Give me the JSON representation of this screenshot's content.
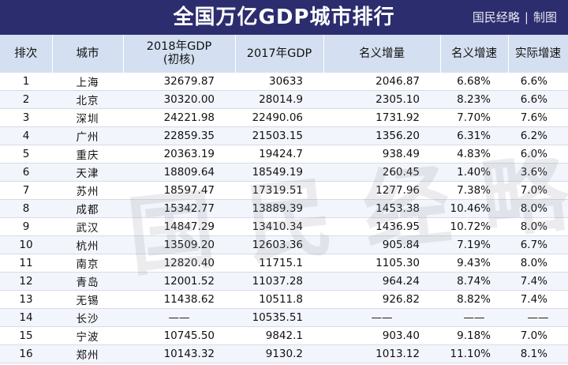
{
  "header": {
    "title": "全国万亿GDP城市排行",
    "credit_org": "国民经略",
    "credit_sep": "|",
    "credit_suffix": "制图"
  },
  "watermark": "国民经略",
  "columns": [
    "排次",
    "城市",
    "2018年GDP\n(初核)",
    "2017年GDP",
    "名义增量",
    "名义增速",
    "实际增速"
  ],
  "rows": [
    [
      "1",
      "上海",
      "32679.87",
      "30633",
      "2046.87",
      "6.68%",
      "6.6%"
    ],
    [
      "2",
      "北京",
      "30320.00",
      "28014.9",
      "2305.10",
      "8.23%",
      "6.6%"
    ],
    [
      "3",
      "深圳",
      "24221.98",
      "22490.06",
      "1731.92",
      "7.70%",
      "7.6%"
    ],
    [
      "4",
      "广州",
      "22859.35",
      "21503.15",
      "1356.20",
      "6.31%",
      "6.2%"
    ],
    [
      "5",
      "重庆",
      "20363.19",
      "19424.7",
      "938.49",
      "4.83%",
      "6.0%"
    ],
    [
      "6",
      "天津",
      "18809.64",
      "18549.19",
      "260.45",
      "1.40%",
      "3.6%"
    ],
    [
      "7",
      "苏州",
      "18597.47",
      "17319.51",
      "1277.96",
      "7.38%",
      "7.0%"
    ],
    [
      "8",
      "成都",
      "15342.77",
      "13889.39",
      "1453.38",
      "10.46%",
      "8.0%"
    ],
    [
      "9",
      "武汉",
      "14847.29",
      "13410.34",
      "1436.95",
      "10.72%",
      "8.0%"
    ],
    [
      "10",
      "杭州",
      "13509.20",
      "12603.36",
      "905.84",
      "7.19%",
      "6.7%"
    ],
    [
      "11",
      "南京",
      "12820.40",
      "11715.1",
      "1105.30",
      "9.43%",
      "8.0%"
    ],
    [
      "12",
      "青岛",
      "12001.52",
      "11037.28",
      "964.24",
      "8.74%",
      "7.4%"
    ],
    [
      "13",
      "无锡",
      "11438.62",
      "10511.8",
      "926.82",
      "8.82%",
      "7.4%"
    ],
    [
      "14",
      "长沙",
      "——",
      "10535.51",
      "——",
      "——",
      "——"
    ],
    [
      "15",
      "宁波",
      "10745.50",
      "9842.1",
      "903.40",
      "9.18%",
      "7.0%"
    ],
    [
      "16",
      "郑州",
      "10143.32",
      "9130.2",
      "1013.12",
      "11.10%",
      "8.1%"
    ]
  ],
  "colors": {
    "header_bg": "#2c2d6e",
    "colhead_bg": "#d4e0f1",
    "stripe": "#f2f5fb"
  }
}
